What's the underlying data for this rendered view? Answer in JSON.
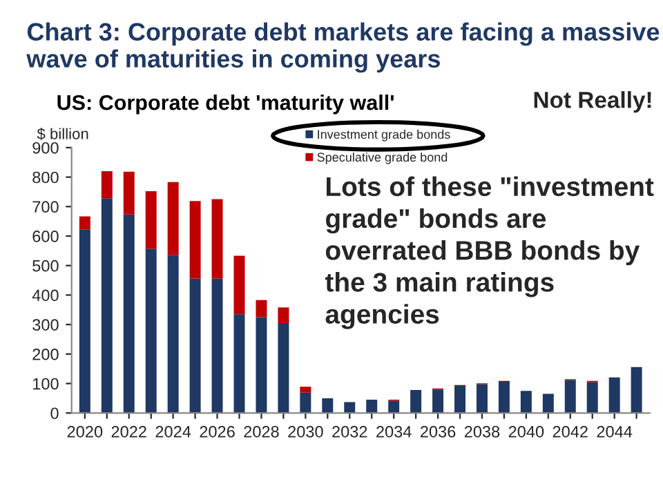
{
  "chart_data": {
    "type": "bar",
    "stacked": true,
    "title": "Chart 3: Corporate debt markets are facing a massive wave of maturities in coming years",
    "subtitle": "US: Corporate debt 'maturity wall'",
    "ylabel": "$ billion",
    "annotations": [
      "Not Really!",
      "Lots of these \"investment grade\" bonds are overrated BBB bonds by the 3 main ratings agencies"
    ],
    "categories": [
      "2020",
      null,
      "2022",
      null,
      "2024",
      null,
      "2026",
      null,
      "2028",
      null,
      "2030",
      null,
      "2032",
      null,
      "2034",
      null,
      "2036",
      null,
      "2038",
      null,
      "2040",
      null,
      "2042",
      null,
      "2044",
      null
    ],
    "series": [
      {
        "name": "Investment grade bonds",
        "color": "#1f3864",
        "values": [
          623,
          728,
          673,
          557,
          536,
          456,
          456,
          335,
          325,
          305,
          69,
          50,
          37,
          45,
          42,
          78,
          80,
          92,
          98,
          106,
          75,
          65,
          112,
          105,
          121,
          156
        ]
      },
      {
        "name": "Speculative grade bond",
        "color": "#c00000",
        "values": [
          44,
          92,
          145,
          195,
          247,
          263,
          269,
          198,
          58,
          53,
          20,
          0,
          0,
          0,
          3,
          0,
          3,
          3,
          3,
          3,
          0,
          0,
          3,
          4,
          0,
          0
        ]
      }
    ],
    "ylim": [
      0,
      900
    ],
    "yticks": [
      0,
      100,
      200,
      300,
      400,
      500,
      600,
      700,
      800,
      900
    ],
    "legend": "top",
    "grid": false
  }
}
